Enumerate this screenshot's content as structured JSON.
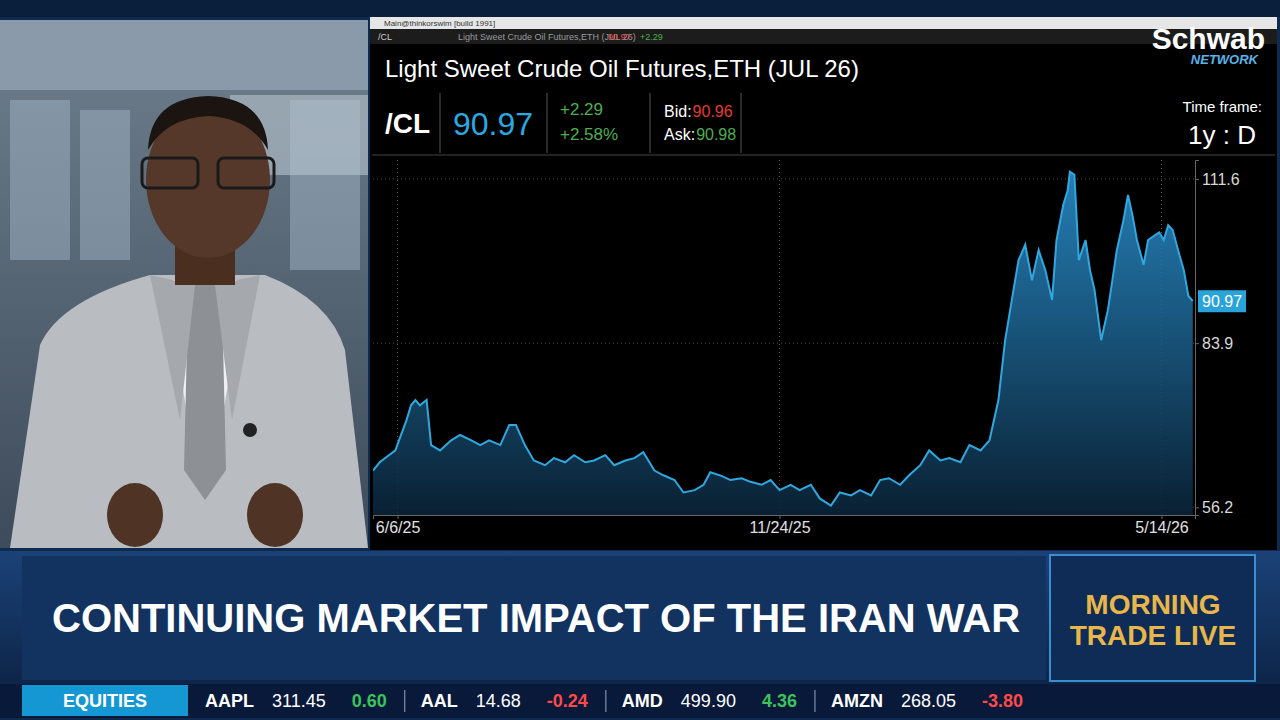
{
  "window": {
    "title": "Main@thinkorswim [build 1991]"
  },
  "quote": {
    "symbol": "/CL",
    "last": "90.97",
    "change": "+2.29",
    "change_pct": "+2.58%",
    "bid_label": "Bid:",
    "bid": "90.96",
    "ask_label": "Ask:",
    "ask": "90.98",
    "time_frame_label": "Time frame:",
    "time_frame": "1y : D"
  },
  "logo": {
    "name": "Schwab",
    "sub": "NETWORK"
  },
  "chart_data": {
    "type": "area",
    "title": "Light Sweet Crude Oil Futures,ETH (JUL 26)",
    "color": "#2fa8e0",
    "grid": true,
    "x": [
      "2025-05-26",
      "2025-05-29",
      "2025-06-05",
      "2025-06-10",
      "2025-06-12",
      "2025-06-14",
      "2025-06-16",
      "2025-06-19",
      "2025-06-21",
      "2025-06-25",
      "2025-06-30",
      "2025-07-04",
      "2025-07-09",
      "2025-07-13",
      "2025-07-17",
      "2025-07-22",
      "2025-07-26",
      "2025-07-29",
      "2025-08-02",
      "2025-08-06",
      "2025-08-11",
      "2025-08-15",
      "2025-08-20",
      "2025-08-24",
      "2025-08-29",
      "2025-09-02",
      "2025-09-07",
      "2025-09-11",
      "2025-09-16",
      "2025-09-20",
      "2025-09-24",
      "2025-09-29",
      "2025-10-03",
      "2025-10-08",
      "2025-10-12",
      "2025-10-17",
      "2025-10-21",
      "2025-10-24",
      "2025-10-29",
      "2025-11-02",
      "2025-11-07",
      "2025-11-11",
      "2025-11-16",
      "2025-11-20",
      "2025-11-24",
      "2025-11-29",
      "2025-12-03",
      "2025-12-08",
      "2025-12-12",
      "2025-12-17",
      "2025-12-21",
      "2025-12-26",
      "2025-12-30",
      "2026-01-04",
      "2026-01-08",
      "2026-01-12",
      "2026-01-17",
      "2026-01-21",
      "2026-01-26",
      "2026-01-30",
      "2026-02-04",
      "2026-02-08",
      "2026-02-13",
      "2026-02-17",
      "2026-02-22",
      "2026-02-26",
      "2026-03-02",
      "2026-03-05",
      "2026-03-08",
      "2026-03-11",
      "2026-03-14",
      "2026-03-17",
      "2026-03-20",
      "2026-03-23",
      "2026-03-26",
      "2026-03-28",
      "2026-03-31",
      "2026-04-02",
      "2026-04-03",
      "2026-04-05",
      "2026-04-07",
      "2026-04-10",
      "2026-04-12",
      "2026-04-14",
      "2026-04-17",
      "2026-04-20",
      "2026-04-22",
      "2026-04-24",
      "2026-04-27",
      "2026-04-29",
      "2026-05-01",
      "2026-05-03",
      "2026-05-06",
      "2026-05-08",
      "2026-05-11",
      "2026-05-13",
      "2026-05-15",
      "2026-05-17",
      "2026-05-19",
      "2026-05-22",
      "2026-05-24",
      "2026-05-26",
      "2026-05-28"
    ],
    "values": [
      62.4,
      63.8,
      65.8,
      70.9,
      73.4,
      74.3,
      73.4,
      74.3,
      66.7,
      65.8,
      67.5,
      68.4,
      67.5,
      66.7,
      67.5,
      66.7,
      70.1,
      70.1,
      66.7,
      64.1,
      63.3,
      64.5,
      63.8,
      65.0,
      63.8,
      64.1,
      65.0,
      63.3,
      64.1,
      64.5,
      65.5,
      62.4,
      61.6,
      60.8,
      58.7,
      59.1,
      60.0,
      62.1,
      61.5,
      60.8,
      61.1,
      60.5,
      60.0,
      60.8,
      59.1,
      60.0,
      59.1,
      60.0,
      57.7,
      56.5,
      58.7,
      58.2,
      59.1,
      58.2,
      60.8,
      61.1,
      60.0,
      61.6,
      63.3,
      65.8,
      64.1,
      64.5,
      63.8,
      66.7,
      65.8,
      67.5,
      74.3,
      84.4,
      91.2,
      97.9,
      100.5,
      94.5,
      99.6,
      96.2,
      91.2,
      101.3,
      107.2,
      109.7,
      112.8,
      112.3,
      97.9,
      101.3,
      96.2,
      92.9,
      84.4,
      89.5,
      94.5,
      99.6,
      104.7,
      108.9,
      105.5,
      101.3,
      97.1,
      101.3,
      102.1,
      102.6,
      101.3,
      103.8,
      103.0,
      98.8,
      96.2,
      91.9,
      90.97
    ],
    "xlim": [
      "2025-05-26",
      "2026-05-29"
    ],
    "xticks": [
      {
        "value": "2025-06-06",
        "label": "6/6/25"
      },
      {
        "value": "2025-11-24",
        "label": "11/24/25"
      },
      {
        "value": "2026-05-14",
        "label": "5/14/26"
      }
    ],
    "ylim": [
      54.9,
      114.8
    ],
    "yticks": [
      56.2,
      83.9,
      111.6
    ]
  },
  "banner": {
    "headline": "CONTINUING MARKET IMPACT OF THE IRAN WAR",
    "show": [
      "MORNING",
      "TRADE LIVE"
    ]
  },
  "ticker": {
    "section": "EQUITIES",
    "items": [
      {
        "symbol": "AAPL",
        "price": "311.45",
        "change": "0.60"
      },
      {
        "symbol": "AAL",
        "price": "14.68",
        "change": "-0.24"
      },
      {
        "symbol": "AMD",
        "price": "499.90",
        "change": "4.36"
      },
      {
        "symbol": "AMZN",
        "price": "268.05",
        "change": "-3.80"
      }
    ]
  }
}
